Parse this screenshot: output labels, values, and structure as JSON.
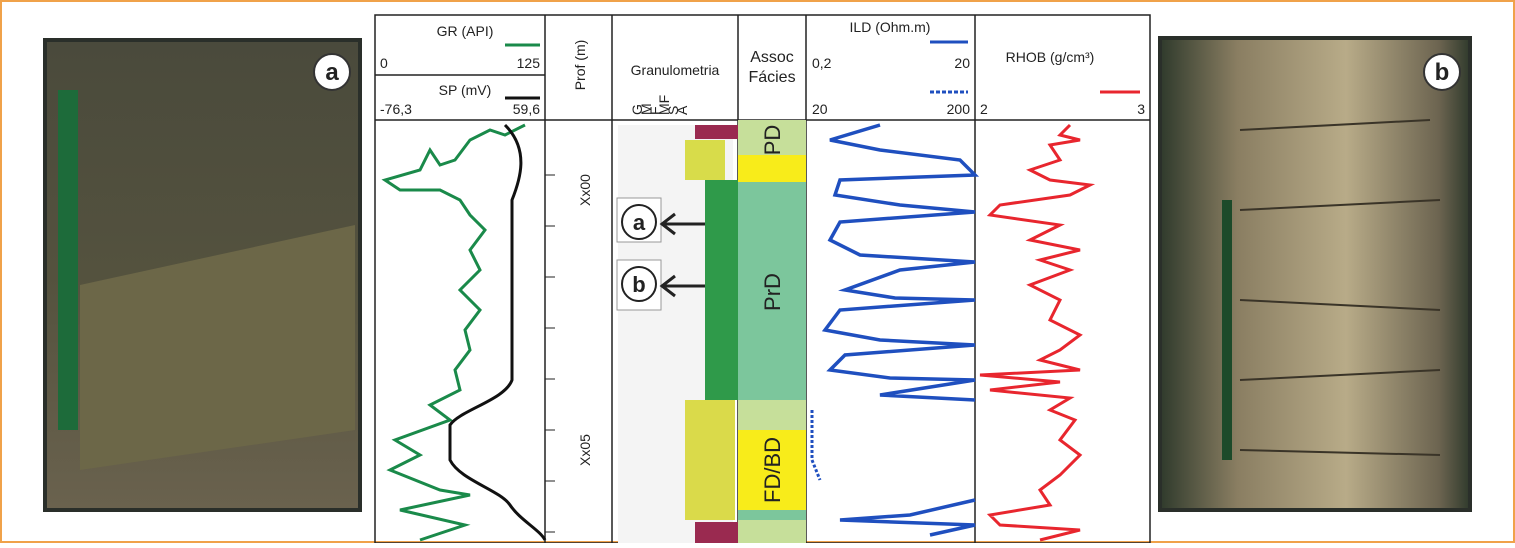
{
  "photos": {
    "a": "a",
    "b": "b"
  },
  "tracks": {
    "gr": {
      "title": "GR (API)",
      "min": "0",
      "max": "125"
    },
    "sp": {
      "title": "SP (mV)",
      "min": "-76,3",
      "max": "59,6"
    },
    "depth": {
      "title": "Prof (m)",
      "labels": [
        "Xx00",
        "Xx05"
      ]
    },
    "grain": {
      "title": "Granulometria",
      "classes": [
        "G",
        "M",
        "F",
        "MF",
        "S",
        "A"
      ],
      "arrows": [
        "a",
        "b"
      ]
    },
    "facies": {
      "title": [
        "Assoc",
        "Fácies"
      ],
      "units": [
        "PD",
        "PrD",
        "FD/BD"
      ]
    },
    "ild": {
      "title": "ILD (Ohm.m)",
      "min": "0,2",
      "max": "20",
      "min2": "20",
      "max2": "200"
    },
    "rhob": {
      "title": "RHOB (g/cm³)",
      "min": "2",
      "max": "3"
    }
  }
}
